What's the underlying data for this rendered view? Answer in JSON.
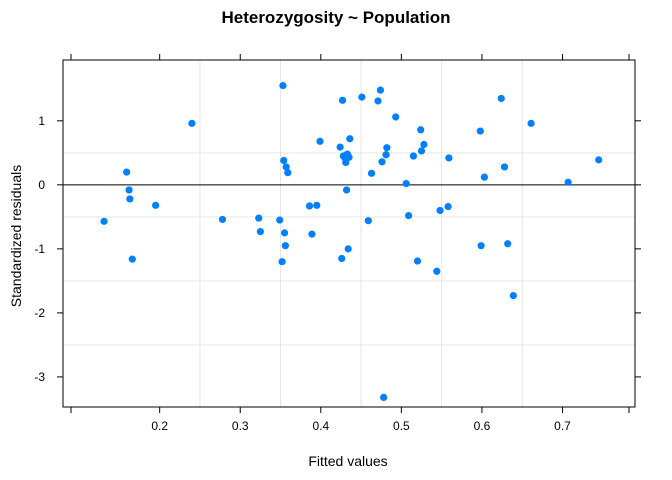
{
  "chart_data": {
    "type": "scatter",
    "title": "Heterozygosity ~ Population",
    "xlabel": "Fitted values",
    "ylabel": "Standardized residuals",
    "xlim": [
      0.08,
      0.79
    ],
    "ylim": [
      -3.47,
      1.95
    ],
    "x_ticks": [
      0.2,
      0.3,
      0.4,
      0.5,
      0.6,
      0.7
    ],
    "x_tick_labels": [
      "0.2",
      "0.3",
      "0.4",
      "0.5",
      "0.6",
      "0.7"
    ],
    "y_ticks": [
      1,
      0,
      -1,
      -2,
      -3
    ],
    "y_tick_labels": [
      "1",
      "0",
      "-1",
      "-2",
      "-3"
    ],
    "grid": true,
    "reference_line_y": 0,
    "marker_color": "#0080ff",
    "x": [
      0.131,
      0.159,
      0.162,
      0.163,
      0.166,
      0.195,
      0.24,
      0.278,
      0.323,
      0.325,
      0.349,
      0.352,
      0.353,
      0.354,
      0.355,
      0.356,
      0.357,
      0.359,
      0.386,
      0.389,
      0.395,
      0.399,
      0.424,
      0.426,
      0.427,
      0.428,
      0.43,
      0.431,
      0.432,
      0.432,
      0.433,
      0.434,
      0.435,
      0.436,
      0.451,
      0.459,
      0.463,
      0.471,
      0.474,
      0.476,
      0.478,
      0.481,
      0.481,
      0.482,
      0.493,
      0.506,
      0.509,
      0.515,
      0.52,
      0.524,
      0.525,
      0.528,
      0.544,
      0.548,
      0.558,
      0.559,
      0.598,
      0.599,
      0.603,
      0.624,
      0.628,
      0.632,
      0.639,
      0.661,
      0.707,
      0.745
    ],
    "y": [
      -0.57,
      0.2,
      -0.08,
      -0.22,
      -1.16,
      -0.32,
      0.96,
      -0.54,
      -0.52,
      -0.73,
      -0.55,
      -1.2,
      1.55,
      0.38,
      -0.75,
      -0.95,
      0.28,
      0.19,
      -0.33,
      -0.77,
      -0.32,
      0.68,
      0.59,
      -1.15,
      1.32,
      0.45,
      0.42,
      0.35,
      -0.08,
      0.47,
      0.48,
      -1.0,
      0.43,
      0.72,
      1.37,
      -0.56,
      0.18,
      1.31,
      1.48,
      0.36,
      -3.32,
      0.47,
      0.47,
      0.58,
      1.06,
      0.02,
      -0.48,
      0.45,
      -1.19,
      0.86,
      0.53,
      0.63,
      -1.35,
      -0.4,
      -0.34,
      0.42,
      0.84,
      -0.95,
      0.12,
      1.35,
      0.28,
      -0.92,
      -1.73,
      0.96,
      0.04,
      0.39
    ]
  }
}
